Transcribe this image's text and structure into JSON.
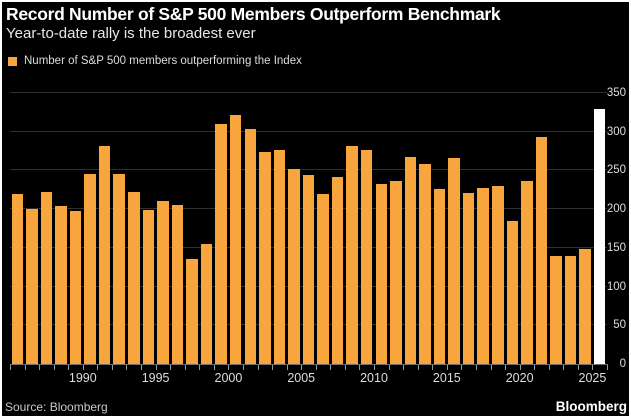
{
  "header": {
    "title": "Record Number of S&P 500 Members Outperform Benchmark",
    "subtitle": "Year-to-date rally is the broadest ever"
  },
  "legend": {
    "label": "Number of S&P 500 members outperforming the Index"
  },
  "footer": {
    "source": "Source: Bloomberg",
    "brand": "Bloomberg"
  },
  "colors": {
    "background": "#000000",
    "bar_orange": "#F7A53C",
    "bar_highlight_white": "#FFFFFF",
    "gridline": "#2F2F2F",
    "axis_text": "#DDDDDD",
    "title_text": "#FFFFFF"
  },
  "chart_data": {
    "type": "bar",
    "title": "Record Number of S&P 500 Members Outperform Benchmark",
    "subtitle": "Year-to-date rally is the broadest ever",
    "legend_entries": [
      "Number of S&P 500 members outperforming the Index"
    ],
    "xlabel": "",
    "ylabel": "",
    "x": [
      1985,
      1986,
      1987,
      1988,
      1989,
      1990,
      1991,
      1992,
      1993,
      1994,
      1995,
      1996,
      1997,
      1998,
      1999,
      2000,
      2001,
      2002,
      2003,
      2004,
      2005,
      2006,
      2007,
      2008,
      2009,
      2010,
      2011,
      2012,
      2013,
      2014,
      2015,
      2016,
      2017,
      2018,
      2019,
      2020,
      2021,
      2022,
      2023,
      2024,
      2025
    ],
    "values": [
      220,
      200,
      222,
      204,
      198,
      245,
      281,
      245,
      222,
      199,
      211,
      206,
      135,
      155,
      310,
      322,
      304,
      274,
      276,
      252,
      244,
      219,
      241,
      281,
      277,
      233,
      236,
      267,
      258,
      226,
      266,
      221,
      227,
      230,
      185,
      236,
      293,
      140,
      140,
      148,
      330
    ],
    "highlight_x": 2025,
    "highlight_note": "2025 year-to-date bar drawn in white (record high)",
    "ylim": [
      0,
      350
    ],
    "yticks": [
      0,
      50,
      100,
      150,
      200,
      250,
      300,
      350
    ],
    "y_axis_side": "right",
    "xticks": [
      1990,
      1995,
      2000,
      2005,
      2010,
      2015,
      2020,
      2025
    ],
    "grid": true,
    "legend_position": "top-left",
    "bar_color": "#F7A53C",
    "highlight_color": "#FFFFFF"
  }
}
